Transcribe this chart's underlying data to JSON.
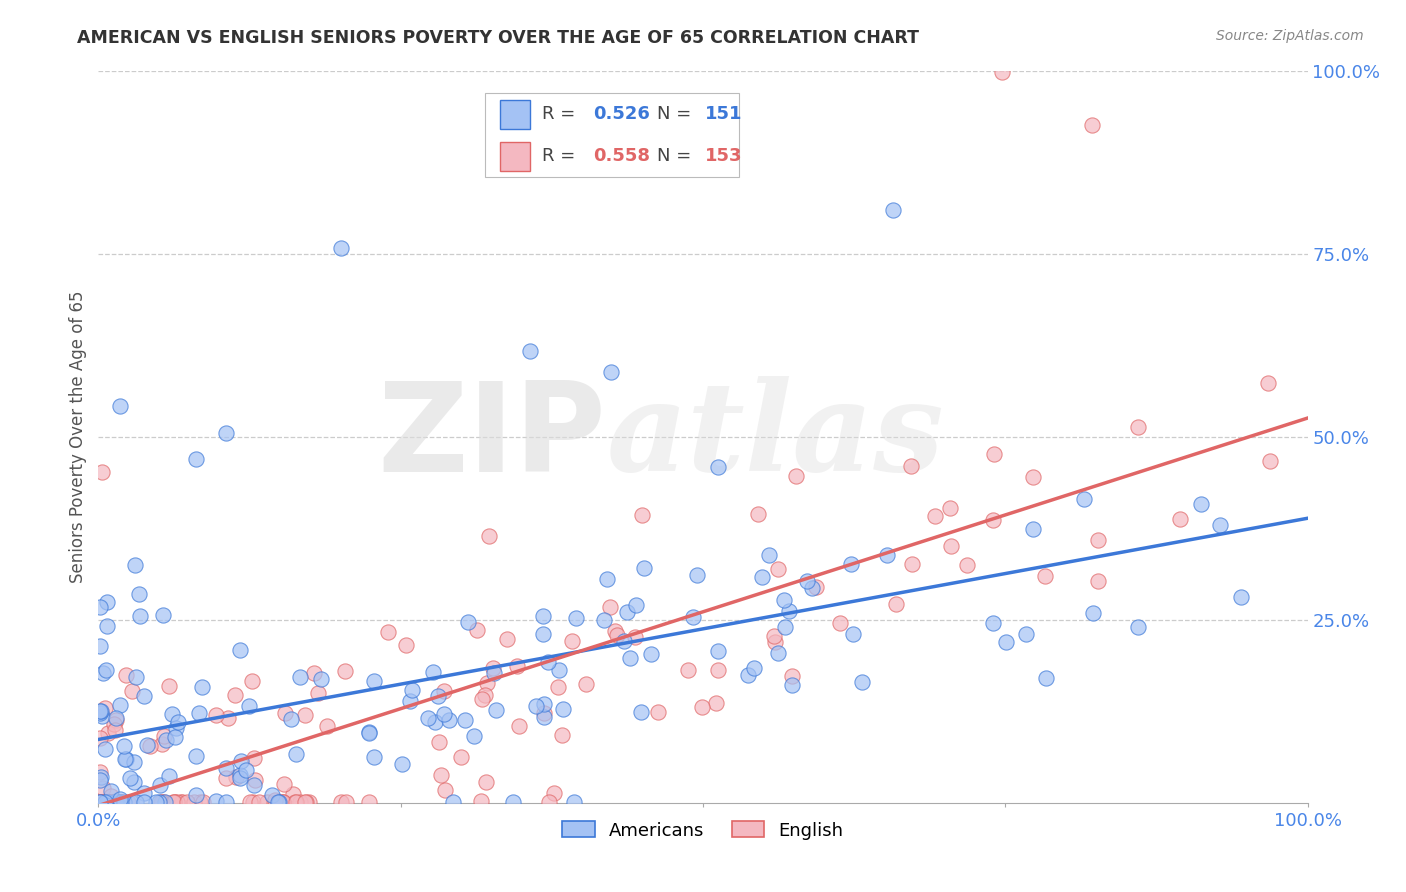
{
  "title": "AMERICAN VS ENGLISH SENIORS POVERTY OVER THE AGE OF 65 CORRELATION CHART",
  "source": "Source: ZipAtlas.com",
  "ylabel": "Seniors Poverty Over the Age of 65",
  "R_american": 0.526,
  "N_american": 151,
  "R_english": 0.558,
  "N_english": 153,
  "american_color": "#a4c2f4",
  "english_color": "#f4b8c1",
  "american_line_color": "#3c78d8",
  "english_line_color": "#e06666",
  "tick_color": "#4a86e8",
  "legend_label_american": "Americans",
  "legend_label_english": "English",
  "watermark_zip": "ZIP",
  "watermark_atlas": "atlas",
  "xlim": [
    0.0,
    1.0
  ],
  "ylim": [
    0.0,
    1.0
  ],
  "x_ticks": [
    0.0,
    0.25,
    0.5,
    0.75,
    1.0
  ],
  "x_tick_labels": [
    "0.0%",
    "",
    "",
    "",
    "100.0%"
  ],
  "y_ticks": [
    0.25,
    0.5,
    0.75,
    1.0
  ],
  "y_tick_labels": [
    "25.0%",
    "50.0%",
    "75.0%",
    "100.0%"
  ],
  "background_color": "#ffffff",
  "grid_color": "#cccccc"
}
